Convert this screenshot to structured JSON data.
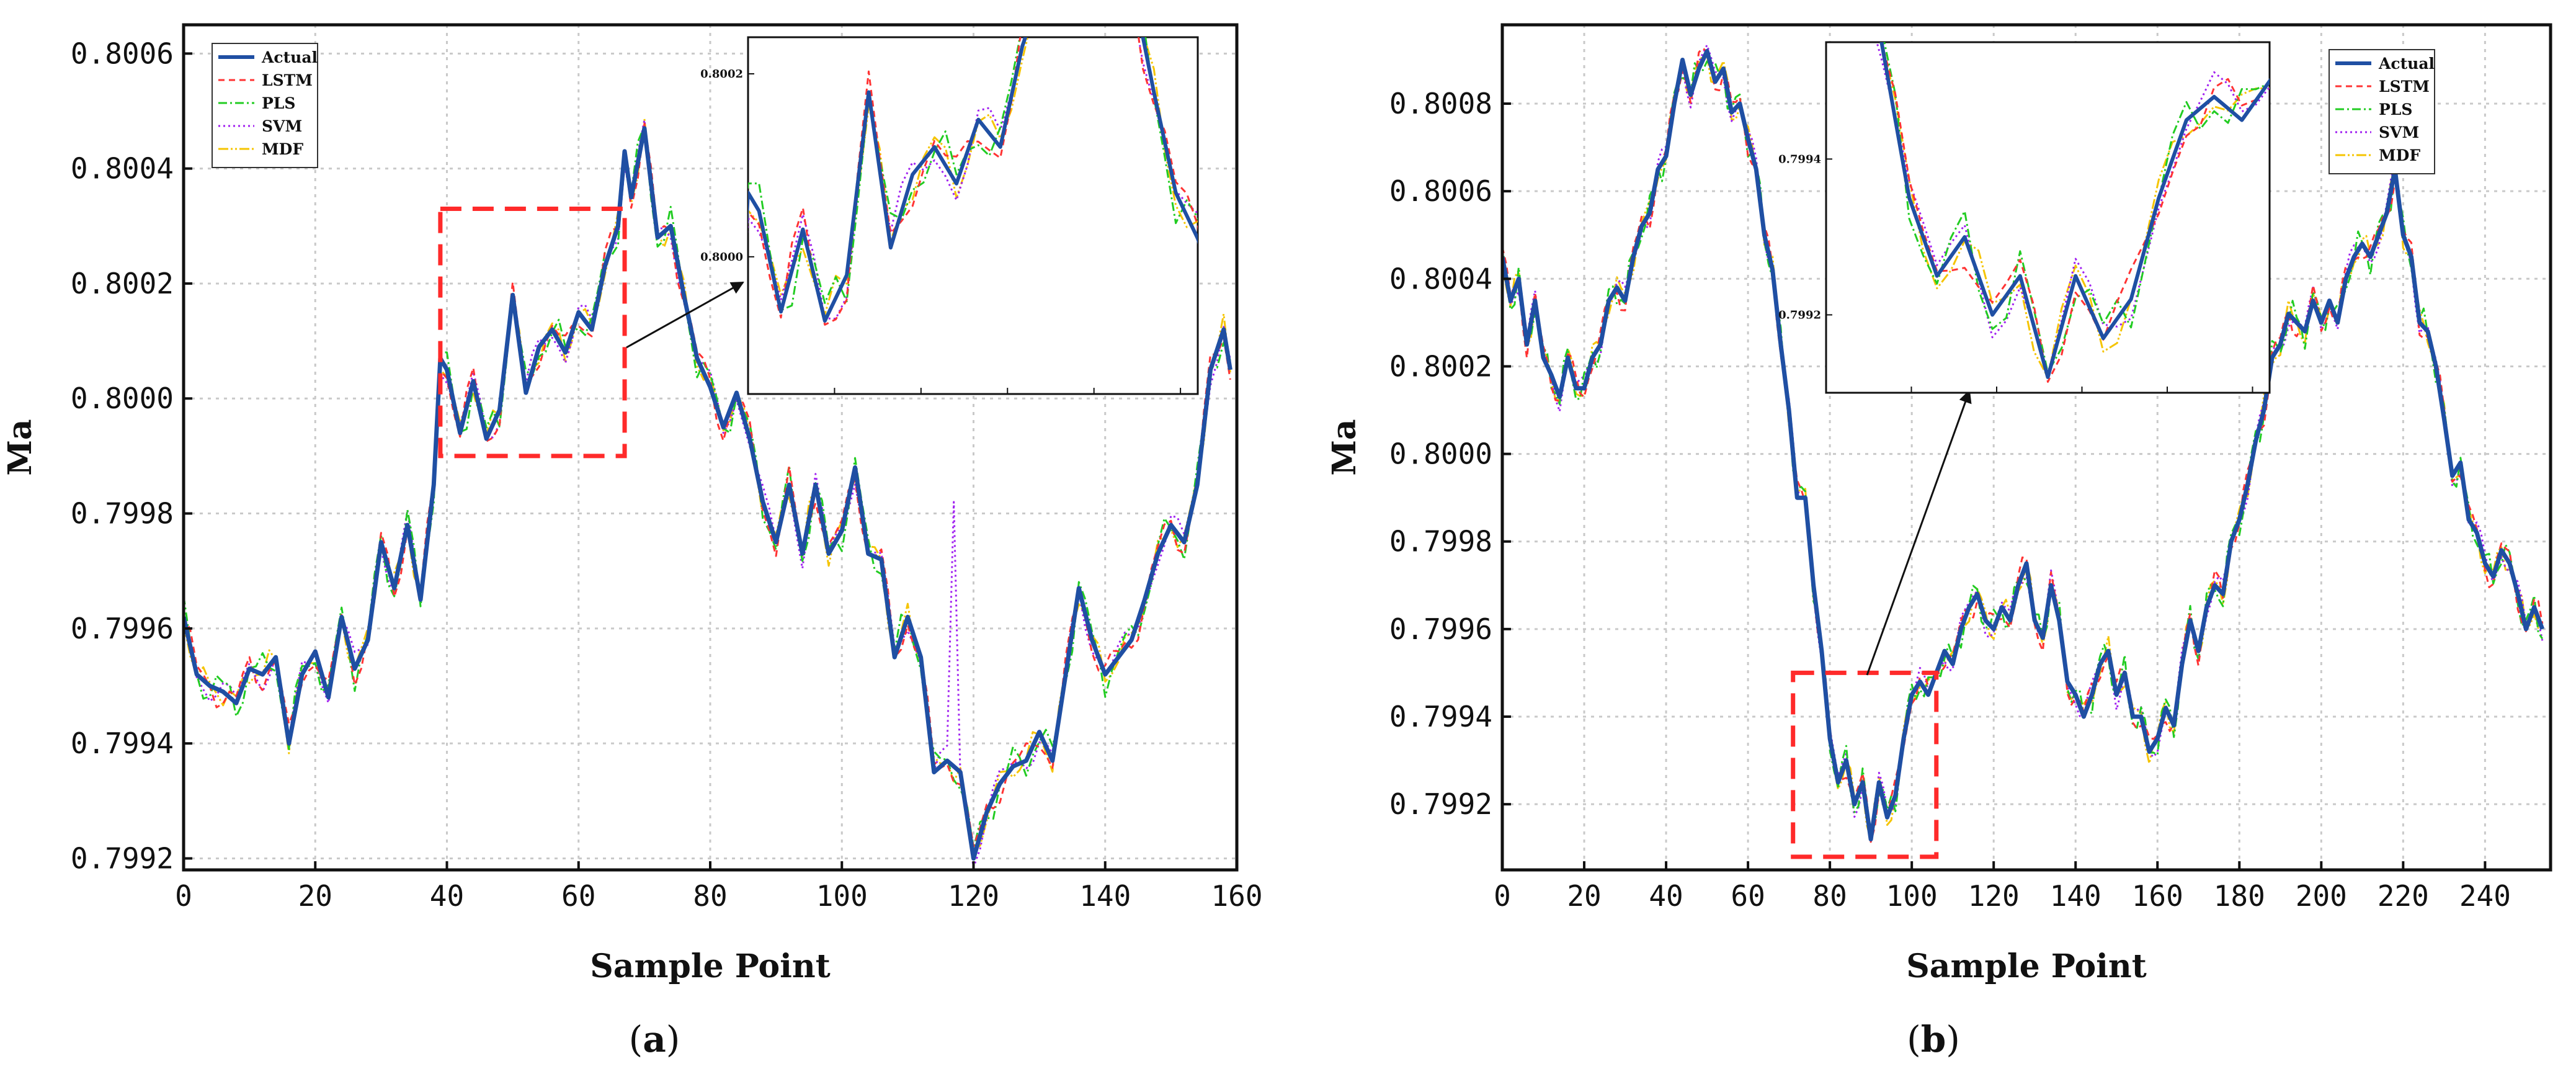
{
  "colors": {
    "Actual": "#1f4fa3",
    "LSTM": "#ff3333",
    "PLS": "#22cc22",
    "SVM": "#a020f0",
    "MDF": "#f5c400",
    "zoom_box": "#ff2a2a"
  },
  "chart_data": [
    {
      "type": "line",
      "panel_label_parts": [
        "(",
        "a",
        ")"
      ],
      "xlabel": "Sample Point",
      "ylabel": "Ma",
      "xlim": [
        0,
        160
      ],
      "ylim": [
        0.79918,
        0.80065
      ],
      "x_ticks": [
        0,
        20,
        40,
        60,
        80,
        100,
        120,
        140,
        160
      ],
      "y_ticks": [
        0.7992,
        0.7994,
        0.7996,
        0.7998,
        0.8,
        0.8002,
        0.8004,
        0.8006
      ],
      "y_tick_labels": [
        "0.7992",
        "0.7994",
        "0.7996",
        "0.7998",
        "0.8000",
        "0.8002",
        "0.8004",
        "0.8006"
      ],
      "grid": true,
      "legend_placement": "top-left",
      "legend": [
        "Actual",
        "LSTM",
        "PLS",
        "SVM",
        "MDF"
      ],
      "x_step": 1,
      "actual_keypoints": [
        [
          0,
          0.79962
        ],
        [
          2,
          0.79952
        ],
        [
          4,
          0.7995
        ],
        [
          6,
          0.79949
        ],
        [
          8,
          0.79947
        ],
        [
          10,
          0.79953
        ],
        [
          12,
          0.79952
        ],
        [
          14,
          0.79955
        ],
        [
          16,
          0.7994
        ],
        [
          18,
          0.79952
        ],
        [
          20,
          0.79956
        ],
        [
          22,
          0.79948
        ],
        [
          24,
          0.79962
        ],
        [
          26,
          0.79953
        ],
        [
          28,
          0.79958
        ],
        [
          30,
          0.79975
        ],
        [
          32,
          0.79967
        ],
        [
          34,
          0.79978
        ],
        [
          36,
          0.79965
        ],
        [
          38,
          0.79985
        ],
        [
          39,
          0.80007
        ],
        [
          40,
          0.80005
        ],
        [
          42,
          0.79994
        ],
        [
          44,
          0.80003
        ],
        [
          46,
          0.79993
        ],
        [
          48,
          0.79998
        ],
        [
          50,
          0.80018
        ],
        [
          52,
          0.80001
        ],
        [
          54,
          0.80009
        ],
        [
          56,
          0.80012
        ],
        [
          58,
          0.80008
        ],
        [
          60,
          0.80015
        ],
        [
          62,
          0.80012
        ],
        [
          64,
          0.80023
        ],
        [
          66,
          0.8003
        ],
        [
          67,
          0.80043
        ],
        [
          68,
          0.80035
        ],
        [
          70,
          0.80047
        ],
        [
          72,
          0.80028
        ],
        [
          74,
          0.8003
        ],
        [
          76,
          0.80018
        ],
        [
          78,
          0.80007
        ],
        [
          80,
          0.80002
        ],
        [
          82,
          0.79995
        ],
        [
          84,
          0.80001
        ],
        [
          86,
          0.79993
        ],
        [
          88,
          0.79982
        ],
        [
          90,
          0.79975
        ],
        [
          92,
          0.79985
        ],
        [
          94,
          0.79973
        ],
        [
          96,
          0.79985
        ],
        [
          98,
          0.79973
        ],
        [
          100,
          0.79977
        ],
        [
          102,
          0.79988
        ],
        [
          104,
          0.79973
        ],
        [
          106,
          0.79972
        ],
        [
          108,
          0.79955
        ],
        [
          110,
          0.79962
        ],
        [
          112,
          0.79955
        ],
        [
          114,
          0.79935
        ],
        [
          116,
          0.79937
        ],
        [
          118,
          0.79935
        ],
        [
          120,
          0.7992
        ],
        [
          122,
          0.79928
        ],
        [
          124,
          0.79933
        ],
        [
          126,
          0.79936
        ],
        [
          128,
          0.79937
        ],
        [
          130,
          0.79942
        ],
        [
          132,
          0.79937
        ],
        [
          134,
          0.79952
        ],
        [
          136,
          0.79967
        ],
        [
          138,
          0.79958
        ],
        [
          140,
          0.79952
        ],
        [
          142,
          0.79955
        ],
        [
          144,
          0.79958
        ],
        [
          146,
          0.79965
        ],
        [
          148,
          0.79973
        ],
        [
          150,
          0.79978
        ],
        [
          152,
          0.79975
        ],
        [
          154,
          0.79985
        ],
        [
          156,
          0.80005
        ],
        [
          158,
          0.80012
        ],
        [
          159,
          0.80005
        ]
      ],
      "model_offsets": {
        "LSTM": {
          "amp": 3.5e-05,
          "phase": 0.0,
          "freq": 0.9
        },
        "PLS": {
          "amp": 4e-05,
          "phase": 1.3,
          "freq": 1.1
        },
        "SVM": {
          "amp": 3e-05,
          "phase": 2.4,
          "freq": 0.7
        },
        "MDF": {
          "amp": 2.8e-05,
          "phase": 3.7,
          "freq": 1.3
        }
      },
      "spikes": [
        {
          "series": "SVM",
          "x": 117,
          "y": 0.79982
        }
      ],
      "zoom_box": {
        "x": [
          39,
          67
        ],
        "y": [
          0.7999,
          0.80033
        ]
      },
      "inset": {
        "x_window": [
          39,
          80
        ],
        "ylim": [
          0.79985,
          0.80024
        ],
        "y_ticks": [
          0.8,
          0.8002
        ],
        "y_tick_labels": [
          "0.8000",
          "0.8002"
        ]
      }
    },
    {
      "type": "line",
      "panel_label_parts": [
        "(",
        "b",
        ")"
      ],
      "xlabel": "Sample Point",
      "ylabel": "Ma",
      "xlim": [
        0,
        256
      ],
      "ylim": [
        0.79905,
        0.80098
      ],
      "x_ticks": [
        0,
        20,
        40,
        60,
        80,
        100,
        120,
        140,
        160,
        180,
        200,
        220,
        240
      ],
      "y_ticks": [
        0.7992,
        0.7994,
        0.7996,
        0.7998,
        0.8,
        0.8002,
        0.8004,
        0.8006,
        0.8008
      ],
      "y_tick_labels": [
        "0.7992",
        "0.7994",
        "0.7996",
        "0.7998",
        "0.8000",
        "0.8002",
        "0.8004",
        "0.8006",
        "0.8008"
      ],
      "grid": true,
      "legend_placement": "top-right",
      "legend": [
        "Actual",
        "LSTM",
        "PLS",
        "SVM",
        "MDF"
      ],
      "x_step": 1,
      "actual_keypoints": [
        [
          0,
          0.80045
        ],
        [
          2,
          0.80035
        ],
        [
          4,
          0.8004
        ],
        [
          6,
          0.80025
        ],
        [
          8,
          0.80035
        ],
        [
          10,
          0.80022
        ],
        [
          12,
          0.80018
        ],
        [
          14,
          0.80013
        ],
        [
          16,
          0.80022
        ],
        [
          18,
          0.80015
        ],
        [
          20,
          0.80015
        ],
        [
          22,
          0.80022
        ],
        [
          24,
          0.80025
        ],
        [
          26,
          0.80035
        ],
        [
          28,
          0.80038
        ],
        [
          30,
          0.80035
        ],
        [
          32,
          0.80045
        ],
        [
          34,
          0.80052
        ],
        [
          36,
          0.80055
        ],
        [
          38,
          0.80065
        ],
        [
          40,
          0.80068
        ],
        [
          42,
          0.8008
        ],
        [
          44,
          0.8009
        ],
        [
          46,
          0.80082
        ],
        [
          48,
          0.80088
        ],
        [
          50,
          0.80092
        ],
        [
          52,
          0.80085
        ],
        [
          54,
          0.80088
        ],
        [
          56,
          0.80078
        ],
        [
          58,
          0.8008
        ],
        [
          60,
          0.80072
        ],
        [
          62,
          0.80065
        ],
        [
          64,
          0.8005
        ],
        [
          66,
          0.80042
        ],
        [
          68,
          0.80025
        ],
        [
          70,
          0.8001
        ],
        [
          72,
          0.7999
        ],
        [
          74,
          0.7999
        ],
        [
          76,
          0.7997
        ],
        [
          78,
          0.79955
        ],
        [
          80,
          0.79935
        ],
        [
          82,
          0.79925
        ],
        [
          84,
          0.7993
        ],
        [
          86,
          0.7992
        ],
        [
          88,
          0.79925
        ],
        [
          90,
          0.79912
        ],
        [
          92,
          0.79925
        ],
        [
          94,
          0.79917
        ],
        [
          96,
          0.79922
        ],
        [
          98,
          0.79935
        ],
        [
          100,
          0.79945
        ],
        [
          102,
          0.79948
        ],
        [
          104,
          0.79945
        ],
        [
          106,
          0.7995
        ],
        [
          108,
          0.79955
        ],
        [
          110,
          0.79952
        ],
        [
          112,
          0.7996
        ],
        [
          114,
          0.79965
        ],
        [
          116,
          0.79968
        ],
        [
          118,
          0.79962
        ],
        [
          120,
          0.7996
        ],
        [
          122,
          0.79965
        ],
        [
          124,
          0.79962
        ],
        [
          126,
          0.7997
        ],
        [
          128,
          0.79975
        ],
        [
          130,
          0.79962
        ],
        [
          132,
          0.79958
        ],
        [
          134,
          0.7997
        ],
        [
          136,
          0.79962
        ],
        [
          138,
          0.79948
        ],
        [
          140,
          0.79945
        ],
        [
          142,
          0.7994
        ],
        [
          144,
          0.79945
        ],
        [
          146,
          0.79952
        ],
        [
          148,
          0.79955
        ],
        [
          150,
          0.79945
        ],
        [
          152,
          0.7995
        ],
        [
          154,
          0.7994
        ],
        [
          156,
          0.7994
        ],
        [
          158,
          0.79932
        ],
        [
          160,
          0.79935
        ],
        [
          162,
          0.79942
        ],
        [
          164,
          0.79938
        ],
        [
          166,
          0.79952
        ],
        [
          168,
          0.79962
        ],
        [
          170,
          0.79955
        ],
        [
          172,
          0.79965
        ],
        [
          174,
          0.7997
        ],
        [
          176,
          0.79968
        ],
        [
          178,
          0.7998
        ],
        [
          180,
          0.79985
        ],
        [
          182,
          0.79993
        ],
        [
          184,
          0.80003
        ],
        [
          186,
          0.8001
        ],
        [
          188,
          0.80022
        ],
        [
          190,
          0.80025
        ],
        [
          192,
          0.80032
        ],
        [
          194,
          0.8003
        ],
        [
          196,
          0.80028
        ],
        [
          198,
          0.80035
        ],
        [
          200,
          0.8003
        ],
        [
          202,
          0.80035
        ],
        [
          204,
          0.8003
        ],
        [
          206,
          0.8004
        ],
        [
          208,
          0.80045
        ],
        [
          210,
          0.80048
        ],
        [
          212,
          0.80045
        ],
        [
          214,
          0.8005
        ],
        [
          216,
          0.80055
        ],
        [
          218,
          0.80065
        ],
        [
          220,
          0.8005
        ],
        [
          222,
          0.80045
        ],
        [
          224,
          0.8003
        ],
        [
          226,
          0.80028
        ],
        [
          228,
          0.8002
        ],
        [
          230,
          0.80008
        ],
        [
          232,
          0.79995
        ],
        [
          234,
          0.79998
        ],
        [
          236,
          0.79985
        ],
        [
          238,
          0.79982
        ],
        [
          240,
          0.79975
        ],
        [
          242,
          0.79972
        ],
        [
          244,
          0.79978
        ],
        [
          246,
          0.79975
        ],
        [
          248,
          0.79968
        ],
        [
          250,
          0.7996
        ],
        [
          252,
          0.79965
        ],
        [
          254,
          0.7996
        ]
      ],
      "model_offsets": {
        "LSTM": {
          "amp": 4e-05,
          "phase": 0.5,
          "freq": 0.8
        },
        "PLS": {
          "amp": 4.5e-05,
          "phase": 1.9,
          "freq": 1.2
        },
        "SVM": {
          "amp": 3.5e-05,
          "phase": 2.8,
          "freq": 0.6
        },
        "MDF": {
          "amp": 3.5e-05,
          "phase": 4.1,
          "freq": 1.0
        }
      },
      "spikes": [],
      "zoom_box": {
        "x": [
          71,
          106
        ],
        "y": [
          0.79908,
          0.7995
        ]
      },
      "inset": {
        "x_window": [
          74,
          106
        ],
        "ylim": [
          0.7991,
          0.79955
        ],
        "y_ticks": [
          0.7992,
          0.7994
        ],
        "y_tick_labels": [
          "0.7992",
          "0.7994"
        ]
      }
    }
  ]
}
